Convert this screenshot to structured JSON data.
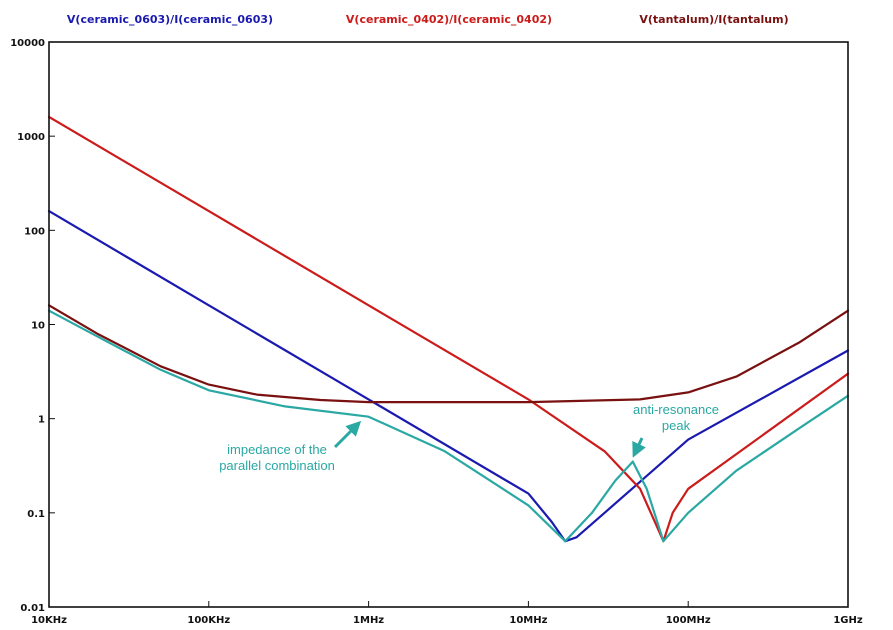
{
  "chart_data": {
    "type": "line",
    "title": "",
    "xlabel": "",
    "ylabel": "",
    "x_scale": "log",
    "y_scale": "log",
    "xlim": [
      10000,
      1000000000
    ],
    "ylim": [
      0.01,
      10000
    ],
    "grid": false,
    "x_tick_values": [
      10000,
      100000,
      1000000,
      10000000,
      100000000,
      1000000000
    ],
    "x_tick_labels": [
      "10KHz",
      "100KHz",
      "1MHz",
      "10MHz",
      "100MHz",
      "1GHz"
    ],
    "y_tick_values": [
      0.01,
      0.1,
      1,
      10,
      100,
      1000,
      10000
    ],
    "y_tick_labels": [
      "0.01",
      "0.1",
      "1",
      "10",
      "100",
      "1000",
      "10000"
    ],
    "legend_position": "top",
    "series": [
      {
        "name": "V(ceramic_0603)/I(ceramic_0603)",
        "color": "#1a1ab0",
        "x": [
          10000,
          100000,
          1000000,
          10000000,
          14000000,
          17000000,
          20000000,
          30000000,
          100000000,
          1000000000
        ],
        "y": [
          160,
          16,
          1.6,
          0.16,
          0.08,
          0.05,
          0.055,
          0.1,
          0.6,
          5.3
        ]
      },
      {
        "name": "V(ceramic_0402)/I(ceramic_0402)",
        "color": "#cc1b1b",
        "x": [
          10000,
          100000,
          1000000,
          10000000,
          30000000,
          50000000,
          60000000,
          70000000,
          80000000,
          100000000,
          1000000000
        ],
        "y": [
          1600,
          160,
          16,
          1.6,
          0.45,
          0.18,
          0.09,
          0.05,
          0.1,
          0.18,
          3.0
        ]
      },
      {
        "name": "V(tantalum)/I(tantalum)",
        "color": "#7a1111",
        "x": [
          10000,
          20000,
          50000,
          100000,
          200000,
          500000,
          1000000,
          10000000,
          50000000,
          100000000,
          200000000,
          500000000,
          1000000000
        ],
        "y": [
          16,
          8,
          3.6,
          2.3,
          1.8,
          1.58,
          1.5,
          1.5,
          1.6,
          1.9,
          2.8,
          6.5,
          14
        ]
      },
      {
        "name": "",
        "color": "#2aa8a4",
        "x": [
          10000,
          20000,
          50000,
          100000,
          300000,
          1000000,
          3000000,
          10000000,
          17000000,
          25000000,
          35000000,
          45000000,
          55000000,
          70000000,
          100000000,
          200000000,
          500000000,
          1000000000
        ],
        "y": [
          14,
          7.5,
          3.3,
          2.0,
          1.35,
          1.05,
          0.45,
          0.12,
          0.05,
          0.1,
          0.22,
          0.35,
          0.18,
          0.05,
          0.1,
          0.28,
          0.8,
          1.75
        ]
      }
    ],
    "annotations": [
      {
        "lines": [
          "impedance of the",
          "parallel combination"
        ],
        "color": "#2aa8a4",
        "target_x": 1000000,
        "target_y": 1.0
      },
      {
        "lines": [
          "anti-resonance",
          "peak"
        ],
        "color": "#2aa8a4",
        "target_x": 45000000,
        "target_y": 0.35
      }
    ]
  }
}
